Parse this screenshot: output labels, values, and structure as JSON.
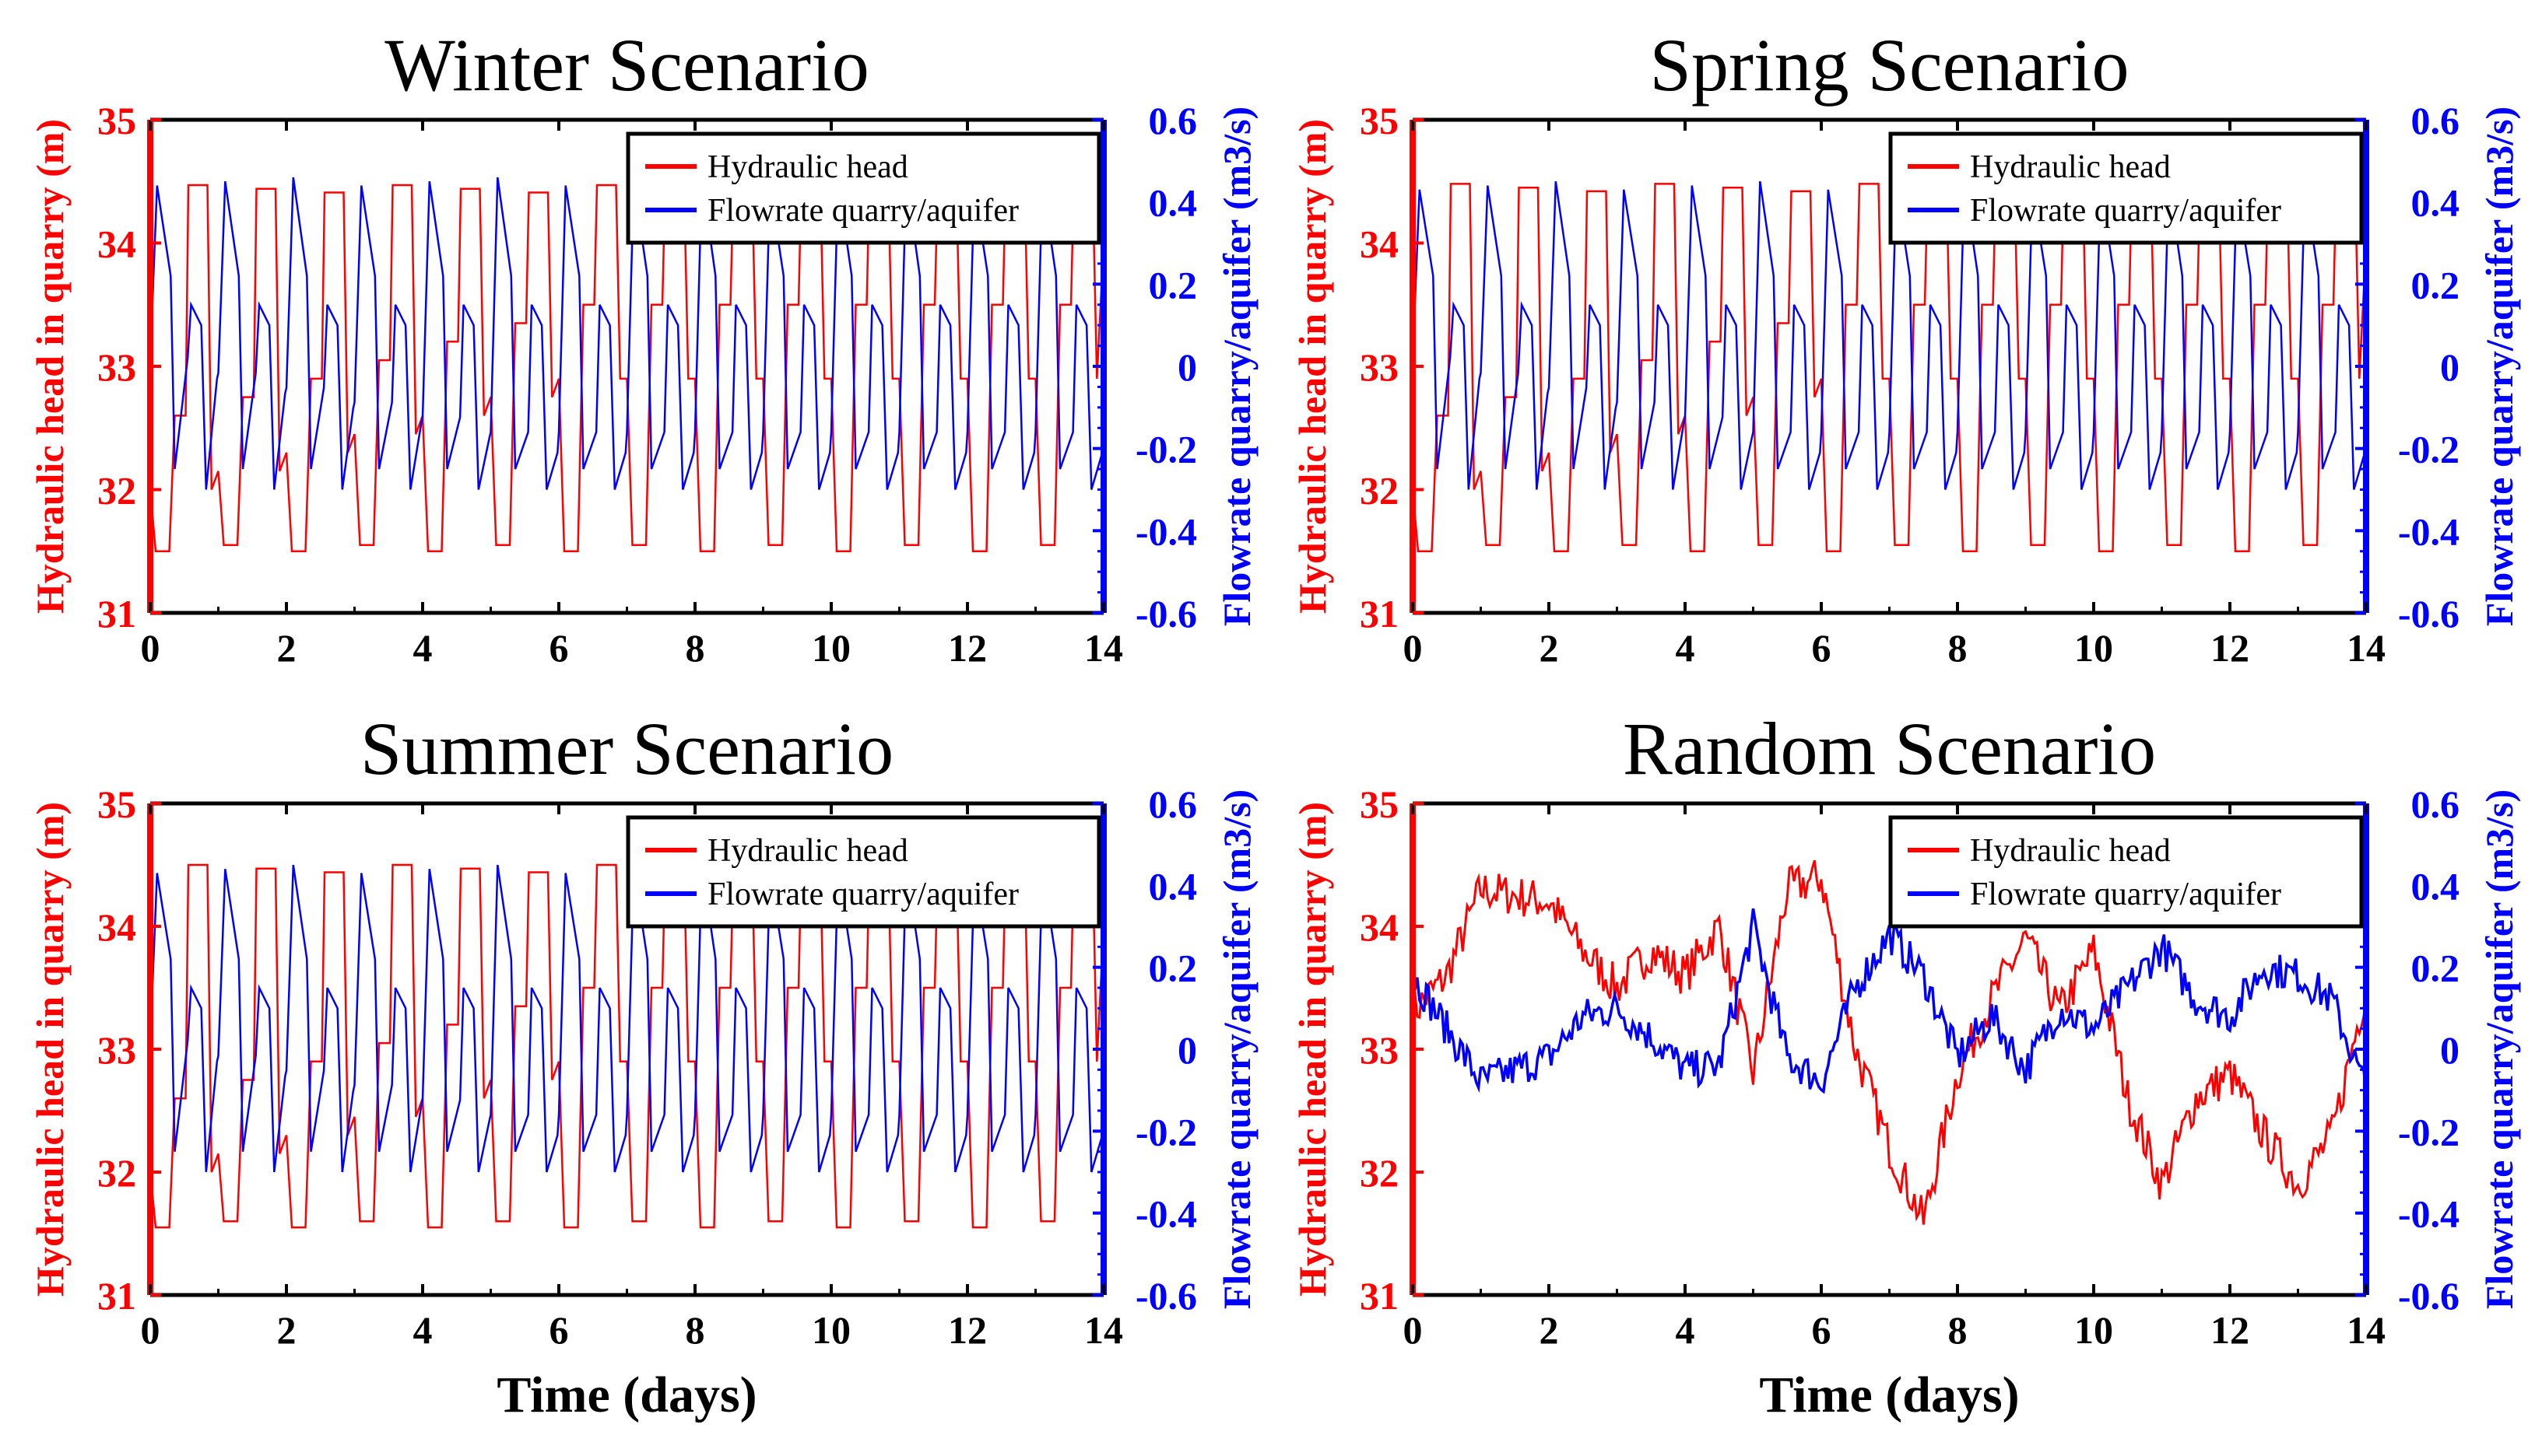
{
  "colors": {
    "head": "#ff0000",
    "flow": "#0000ff",
    "axis": "#000000"
  },
  "chart_data": [
    {
      "type": "line",
      "title": "Winter Scenario",
      "xlabel": "",
      "ylabel_left": "Hydraulic head in quarry (m)",
      "ylabel_right": "Flowrate quarry/aquifer (m3/s)",
      "xlim": [
        0,
        14
      ],
      "ylim_left": [
        31,
        35
      ],
      "ylim_right": [
        -0.6,
        0.6
      ],
      "x_ticks": [
        "0",
        "2",
        "4",
        "6",
        "8",
        "10",
        "12",
        "14"
      ],
      "y_left_ticks": [
        "31",
        "32",
        "33",
        "34",
        "35"
      ],
      "y_right_ticks": [
        "-0.6",
        "-0.4",
        "-0.2",
        "0",
        "0.2",
        "0.4",
        "0.6"
      ],
      "legend": [
        "Hydraulic head",
        "Flowrate quarry/aquifer"
      ],
      "pattern": "cyclic",
      "cycles": 14,
      "peak_head": 34.47,
      "low_head": 31.5,
      "flow_peak": 0.44,
      "flow_min": -0.3
    },
    {
      "type": "line",
      "title": "Spring Scenario",
      "xlabel": "",
      "ylabel_left": "Hydraulic head in quarry (m)",
      "ylabel_right": "Flowrate quarry/aquifer (m3/s)",
      "xlim": [
        0,
        14
      ],
      "ylim_left": [
        31,
        35
      ],
      "ylim_right": [
        -0.6,
        0.6
      ],
      "x_ticks": [
        "0",
        "2",
        "4",
        "6",
        "8",
        "10",
        "12",
        "14"
      ],
      "y_left_ticks": [
        "31",
        "32",
        "33",
        "34",
        "35"
      ],
      "y_right_ticks": [
        "-0.6",
        "-0.4",
        "-0.2",
        "0",
        "0.2",
        "0.4",
        "0.6"
      ],
      "legend": [
        "Hydraulic head",
        "Flowrate quarry/aquifer"
      ],
      "pattern": "cyclic",
      "cycles": 14,
      "peak_head": 34.48,
      "low_head": 31.5,
      "flow_peak": 0.43,
      "flow_min": -0.3
    },
    {
      "type": "line",
      "title": "Summer Scenario",
      "xlabel": "Time (days)",
      "ylabel_left": "Hydraulic head in quarry (m)",
      "ylabel_right": "Flowrate quarry/aquifer (m3/s)",
      "xlim": [
        0,
        14
      ],
      "ylim_left": [
        31,
        35
      ],
      "ylim_right": [
        -0.6,
        0.6
      ],
      "x_ticks": [
        "0",
        "2",
        "4",
        "6",
        "8",
        "10",
        "12",
        "14"
      ],
      "y_left_ticks": [
        "31",
        "32",
        "33",
        "34",
        "35"
      ],
      "y_right_ticks": [
        "-0.6",
        "-0.4",
        "-0.2",
        "0",
        "0.2",
        "0.4",
        "0.6"
      ],
      "legend": [
        "Hydraulic head",
        "Flowrate quarry/aquifer"
      ],
      "pattern": "cyclic",
      "cycles": 14,
      "peak_head": 34.5,
      "low_head": 31.55,
      "flow_peak": 0.43,
      "flow_min": -0.3
    },
    {
      "type": "line",
      "title": "Random Scenario",
      "xlabel": "Time (days)",
      "ylabel_left": "Hydraulic head in quarry (m)",
      "ylabel_right": "Flowrate quarry/aquifer (m3/s)",
      "xlim": [
        0,
        14
      ],
      "ylim_left": [
        31,
        35
      ],
      "ylim_right": [
        -0.6,
        0.6
      ],
      "x_ticks": [
        "0",
        "2",
        "4",
        "6",
        "8",
        "10",
        "12",
        "14"
      ],
      "y_left_ticks": [
        "31",
        "32",
        "33",
        "34",
        "35"
      ],
      "y_right_ticks": [
        "-0.6",
        "-0.4",
        "-0.2",
        "0",
        "0.2",
        "0.4",
        "0.6"
      ],
      "legend": [
        "Hydraulic head",
        "Flowrate quarry/aquifer"
      ],
      "pattern": "random",
      "head_x": [
        0,
        0.5,
        1,
        2,
        2.5,
        3,
        3.5,
        4,
        4.5,
        5,
        5.5,
        6,
        6.5,
        7,
        7.5,
        8,
        8.5,
        9,
        9.5,
        10,
        10.5,
        11,
        11.5,
        12,
        12.5,
        13,
        13.5,
        14
      ],
      "head_y": [
        33.3,
        33.6,
        34.3,
        34.2,
        33.8,
        33.5,
        33.8,
        33.6,
        34.0,
        32.8,
        34.3,
        34.4,
        33.0,
        32.2,
        31.6,
        32.8,
        33.4,
        33.9,
        33.3,
        33.8,
        32.6,
        31.9,
        32.6,
        32.8,
        32.3,
        31.9,
        32.3,
        33.5
      ],
      "flow_x": [
        0,
        0.5,
        1,
        2,
        2.5,
        3,
        3.5,
        4,
        4.5,
        5,
        5.5,
        6,
        6.5,
        7,
        7.5,
        8,
        8.5,
        9,
        9.5,
        10,
        10.5,
        11,
        11.5,
        12,
        12.5,
        13,
        13.5,
        14
      ],
      "flow_y": [
        0.18,
        0.05,
        -0.08,
        -0.02,
        0.08,
        0.1,
        0.03,
        -0.05,
        -0.04,
        0.3,
        -0.02,
        -0.08,
        0.15,
        0.28,
        0.18,
        -0.02,
        0.08,
        -0.05,
        0.1,
        0.05,
        0.15,
        0.25,
        0.12,
        0.08,
        0.2,
        0.18,
        0.12,
        -0.1
      ]
    }
  ]
}
